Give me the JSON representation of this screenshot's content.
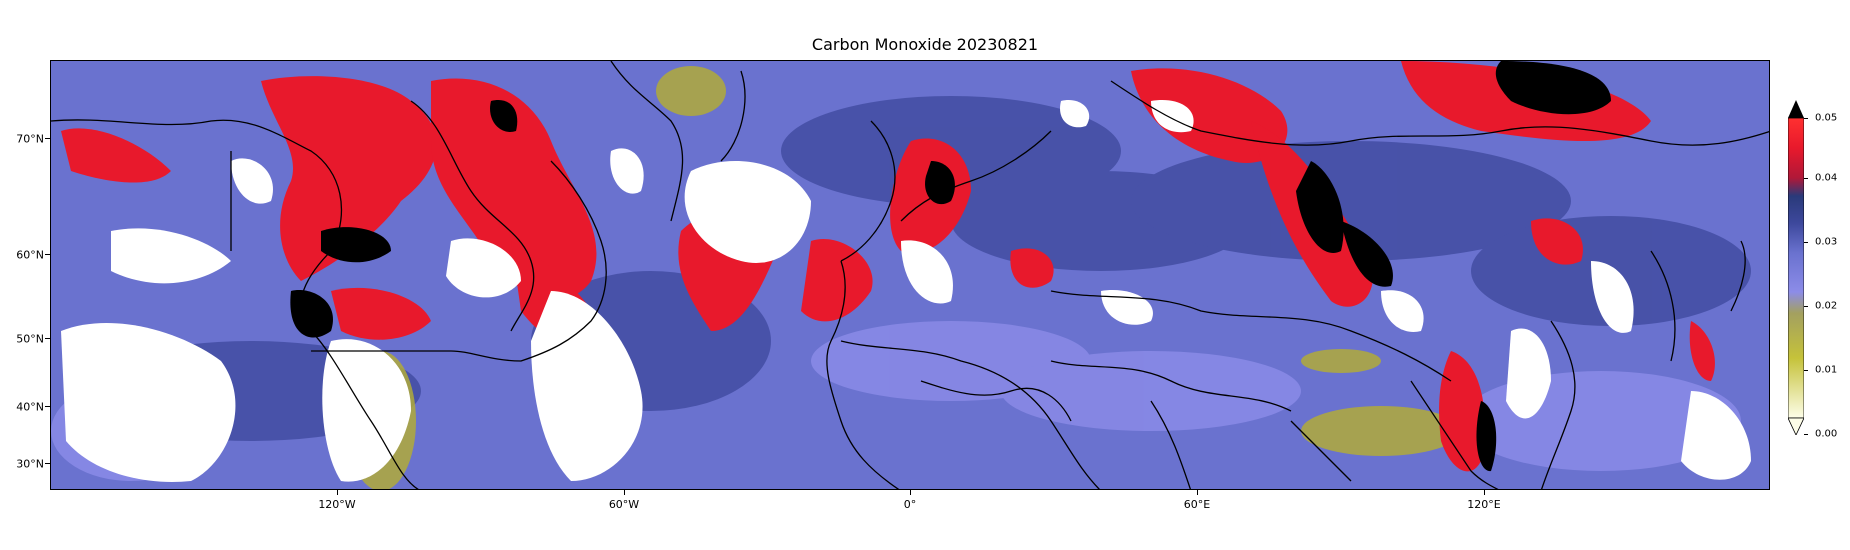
{
  "title": "Carbon Monoxide 20230821",
  "map": {
    "projection": "equirectangular",
    "extent": {
      "lon_min": -180,
      "lon_max": 180,
      "lat_min": 26,
      "lat_max": 79
    },
    "background_level_color": "#6a72cf",
    "fill_level_colors": {
      "cloud_gap": "#ffffff",
      "high": "#e8192c",
      "very_high": "#000000",
      "low": "#b0aa3a",
      "mid_dark": "#3a4590"
    },
    "coastline_color": "#000000"
  },
  "lat_ticks": [
    "70°N",
    "60°N",
    "50°N",
    "40°N",
    "30°N"
  ],
  "lon_ticks": [
    "120°W",
    "60°W",
    "0°",
    "60°E",
    "120°E"
  ],
  "colorbar": {
    "ticks": [
      "0.05",
      "0.04",
      "0.03",
      "0.02",
      "0.01",
      "0.00"
    ],
    "colors": [
      "#fdfde8",
      "#c5c23a",
      "#a3a060",
      "#8c8ce8",
      "#6a72cf",
      "#3d489c",
      "#2a3a7a",
      "#b01838",
      "#e8192c",
      "#000000"
    ],
    "extend": "both"
  }
}
